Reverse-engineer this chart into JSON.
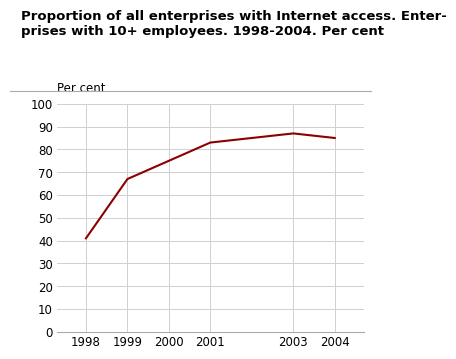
{
  "title_line1": "Proportion of all enterprises with Internet access. Enter-",
  "title_line2": "prises with 10+ employees. 1998-2004. Per cent",
  "ylabel": "Per cent",
  "x": [
    1998,
    1999,
    2000,
    2001,
    2003,
    2004
  ],
  "y": [
    41,
    67,
    75,
    83,
    87,
    85
  ],
  "line_color": "#8B0000",
  "line_width": 1.5,
  "ylim": [
    0,
    100
  ],
  "yticks": [
    0,
    10,
    20,
    30,
    40,
    50,
    60,
    70,
    80,
    90,
    100
  ],
  "xticks": [
    1998,
    1999,
    2000,
    2001,
    2003,
    2004
  ],
  "grid_color": "#d0d0d0",
  "bg_color": "#ffffff",
  "title_fontsize": 9.5,
  "label_fontsize": 8.5,
  "tick_fontsize": 8.5
}
